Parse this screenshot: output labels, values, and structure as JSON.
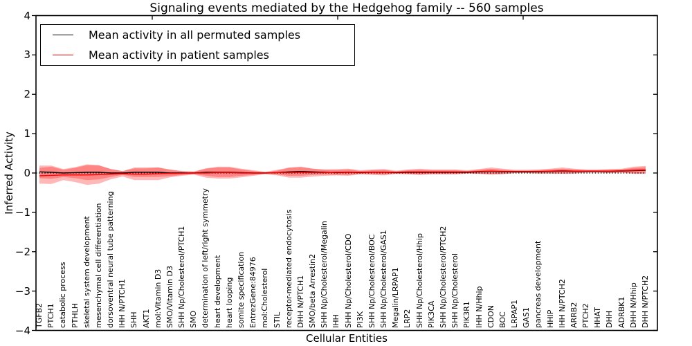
{
  "title": "Signaling events mediated by the Hedgehog family -- 560 samples",
  "chart_data": {
    "type": "line",
    "title": "Signaling events mediated by the Hedgehog family -- 560 samples",
    "xlabel": "Cellular Entities",
    "ylabel": "Inferred Activity",
    "ylim": [
      -4,
      4
    ],
    "yticks": [
      4,
      3,
      2,
      1,
      0,
      -1,
      -2,
      -3,
      -4
    ],
    "grid": false,
    "legend_position": "upper left",
    "zero_line": {
      "y": 0,
      "style": "dotted",
      "color": "#000000"
    },
    "band_fill": "rgba(255,0,0,0.28)",
    "top_tick_x": [
      220,
      488,
      756
    ],
    "categories": [
      "TGFB2",
      "PTCH1",
      "catabolic process",
      "PTHLH",
      "skeletal system development",
      "mesenchymal cell differentiation",
      "dorsoventral neural tube patterning",
      "IHH N/PTCH1",
      "SHH",
      "AKT1",
      "mol:Vitamin D3",
      "SMO/Vitamin D3",
      "SHH Np/Cholesterol/PTCH1",
      "SMO",
      "determination of left/right symmetry",
      "heart development",
      "heart looping",
      "somite specification",
      "EntrezGene:84976",
      "mol:Cholesterol",
      "STIL",
      "receptor-mediated endocytosis",
      "DHH N/PTCH1",
      "SMO/beta Arrestin2",
      "SHH Np/Cholesterol/Megalin",
      "IHH",
      "SHH Np/Cholesterol/CDO",
      "PI3K",
      "SHH Np/Cholesterol/BOC",
      "SHH Np/Cholesterol/GAS1",
      "Megalin/LRPAP1",
      "LRP2",
      "SHH Np/Cholesterol/Hhip",
      "PIK3CA",
      "SHH Np/Cholesterol/PTCH2",
      "SHH Np/Cholesterol",
      "PIK3R1",
      "IHH N/Hhip",
      "CDON",
      "BOC",
      "LRPAP1",
      "GAS1",
      "pancreas development",
      "HHIP",
      "IHH N/PTCH2",
      "ARRB2",
      "PTCH2",
      "HHAT",
      "DHH",
      "ADRBK1",
      "DHH N/Hhip",
      "DHH N/PTCH2"
    ],
    "series": [
      {
        "name": "Mean activity in all permuted samples",
        "color": "#000000",
        "values": [
          0.03,
          0.02,
          0.0,
          0.01,
          0.02,
          0.02,
          0.0,
          0.0,
          0.02,
          0.02,
          0.02,
          0.0,
          0.0,
          0.0,
          0.02,
          0.02,
          0.02,
          0.01,
          0.0,
          0.0,
          0.01,
          0.03,
          0.04,
          0.03,
          0.02,
          0.01,
          0.02,
          0.01,
          0.02,
          0.02,
          0.01,
          0.02,
          0.02,
          0.02,
          0.02,
          0.02,
          0.02,
          0.03,
          0.04,
          0.03,
          0.03,
          0.03,
          0.03,
          0.04,
          0.05,
          0.04,
          0.04,
          0.04,
          0.04,
          0.05,
          0.06,
          0.07
        ],
        "band_halfwidths": [
          0.16,
          0.17,
          0.1,
          0.14,
          0.2,
          0.18,
          0.1,
          0.05,
          0.12,
          0.12,
          0.12,
          0.08,
          0.05,
          0.03,
          0.09,
          0.12,
          0.12,
          0.08,
          0.05,
          0.02,
          0.05,
          0.1,
          0.11,
          0.08,
          0.06,
          0.06,
          0.07,
          0.04,
          0.05,
          0.06,
          0.03,
          0.05,
          0.06,
          0.05,
          0.05,
          0.05,
          0.03,
          0.05,
          0.07,
          0.05,
          0.03,
          0.03,
          0.04,
          0.05,
          0.06,
          0.05,
          0.03,
          0.03,
          0.04,
          0.04,
          0.07,
          0.08
        ]
      },
      {
        "name": "Mean activity in patient samples",
        "color": "#ff0000",
        "values": [
          -0.07,
          -0.06,
          -0.05,
          -0.05,
          -0.05,
          -0.04,
          -0.03,
          -0.02,
          -0.03,
          -0.03,
          -0.02,
          -0.01,
          -0.01,
          0.0,
          0.0,
          0.01,
          0.01,
          0.0,
          0.0,
          0.0,
          0.01,
          0.01,
          0.02,
          0.01,
          0.01,
          0.02,
          0.02,
          0.02,
          0.02,
          0.02,
          0.02,
          0.03,
          0.03,
          0.03,
          0.03,
          0.03,
          0.03,
          0.04,
          0.05,
          0.04,
          0.04,
          0.04,
          0.04,
          0.05,
          0.06,
          0.05,
          0.05,
          0.05,
          0.05,
          0.06,
          0.07,
          0.08
        ],
        "band_halfwidths": [
          0.2,
          0.22,
          0.13,
          0.18,
          0.25,
          0.23,
          0.13,
          0.07,
          0.15,
          0.15,
          0.16,
          0.1,
          0.06,
          0.04,
          0.12,
          0.15,
          0.15,
          0.11,
          0.07,
          0.03,
          0.07,
          0.13,
          0.14,
          0.1,
          0.08,
          0.08,
          0.09,
          0.05,
          0.07,
          0.08,
          0.04,
          0.06,
          0.08,
          0.06,
          0.06,
          0.06,
          0.04,
          0.06,
          0.09,
          0.07,
          0.04,
          0.04,
          0.05,
          0.06,
          0.08,
          0.06,
          0.04,
          0.04,
          0.05,
          0.05,
          0.09,
          0.1
        ]
      }
    ]
  }
}
